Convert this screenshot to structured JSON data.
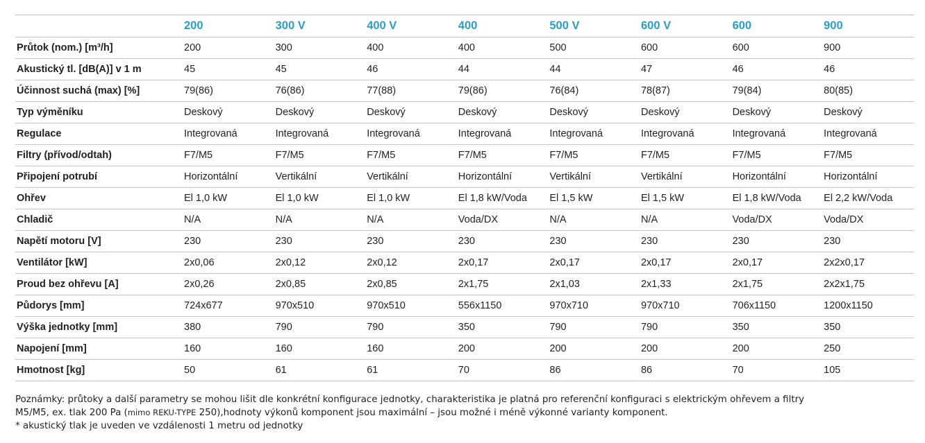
{
  "table": {
    "columns": [
      "",
      "200",
      "300 V",
      "400 V",
      "400",
      "500 V",
      "600 V",
      "600",
      "900"
    ],
    "rows": [
      {
        "label": "Průtok (nom.) [m³/h]",
        "values": [
          "200",
          "300",
          "400",
          "400",
          "500",
          "600",
          "600",
          "900"
        ]
      },
      {
        "label": "Akustický tl. [dB(A)] v 1 m",
        "values": [
          "45",
          "45",
          "46",
          "44",
          "44",
          "47",
          "46",
          "46"
        ]
      },
      {
        "label": "Účinnost suchá (max) [%]",
        "values": [
          "79(86)",
          "76(86)",
          "77(88)",
          "79(86)",
          "76(84)",
          "78(87)",
          "79(84)",
          "80(85)"
        ]
      },
      {
        "label": "Typ výměníku",
        "values": [
          "Deskový",
          "Deskový",
          "Deskový",
          "Deskový",
          "Deskový",
          "Deskový",
          "Deskový",
          "Deskový"
        ]
      },
      {
        "label": "Regulace",
        "values": [
          "Integrovaná",
          "Integrovaná",
          "Integrovaná",
          "Integrovaná",
          "Integrovaná",
          "Integrovaná",
          "Integrovaná",
          "Integrovaná"
        ]
      },
      {
        "label": "Filtry (přívod/odtah)",
        "values": [
          "F7/M5",
          "F7/M5",
          "F7/M5",
          "F7/M5",
          "F7/M5",
          "F7/M5",
          "F7/M5",
          "F7/M5"
        ]
      },
      {
        "label": "Připojení potrubí",
        "values": [
          "Horizontální",
          "Vertikální",
          "Vertikální",
          "Horizontální",
          "Vertikální",
          "Vertikální",
          "Horizontální",
          "Horizontální"
        ]
      },
      {
        "label": "Ohřev",
        "values": [
          "El 1,0 kW",
          "El 1,0 kW",
          "El 1,0 kW",
          "El 1,8 kW/Voda",
          "El 1,5 kW",
          "El 1,5 kW",
          "El 1,8 kW/Voda",
          "El 2,2 kW/Voda"
        ]
      },
      {
        "label": "Chladič",
        "values": [
          "N/A",
          "N/A",
          "N/A",
          "Voda/DX",
          "N/A",
          "N/A",
          "Voda/DX",
          "Voda/DX"
        ]
      },
      {
        "label": "Napětí motoru [V]",
        "values": [
          "230",
          "230",
          "230",
          "230",
          "230",
          "230",
          "230",
          "230"
        ]
      },
      {
        "label": "Ventilátor [kW]",
        "values": [
          "2x0,06",
          "2x0,12",
          "2x0,12",
          "2x0,17",
          "2x0,17",
          "2x0,17",
          "2x0,17",
          "2x2x0,17"
        ]
      },
      {
        "label": "Proud bez ohřevu [A]",
        "values": [
          "2x0,26",
          "2x0,85",
          "2x0,85",
          "2x1,75",
          "2x1,03",
          "2x1,33",
          "2x1,75",
          "2x2x1,75"
        ]
      },
      {
        "label": "Půdorys [mm]",
        "values": [
          "724x677",
          "970x510",
          "970x510",
          "556x1150",
          "970x710",
          "970x710",
          "706x1150",
          "1200x1150"
        ]
      },
      {
        "label": "Výška jednotky [mm]",
        "values": [
          "380",
          "790",
          "790",
          "350",
          "790",
          "790",
          "350",
          "350"
        ]
      },
      {
        "label": "Napojení [mm]",
        "values": [
          "160",
          "160",
          "160",
          "200",
          "200",
          "200",
          "200",
          "250"
        ]
      },
      {
        "label": "Hmotnost [kg]",
        "values": [
          "50",
          "61",
          "61",
          "70",
          "86",
          "86",
          "70",
          "105"
        ]
      }
    ]
  },
  "notes": {
    "line1": "Poznámky:  průtoky a další parametry se mohou lišit dle konkrétní konfigurace jednotky, charakteristika je platná pro referenční konfiguraci s elektrickým ohřevem a filtry",
    "line2_start": "M5/M5, ex. tlak 200 Pa (",
    "line2_small": "mimo REKU-TYPE",
    "line2_end": " 250),hodnoty výkonů komponent jsou maximální – jsou možné i méně výkonné varianty komponent.",
    "line3": "* akustický tlak je uveden ve vzdálenosti 1 metru od jednotky"
  }
}
